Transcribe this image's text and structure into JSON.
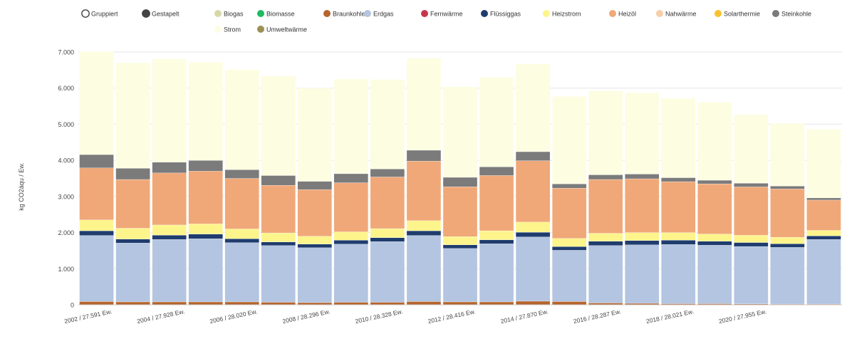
{
  "modes": [
    {
      "label": "Gruppiert",
      "selected": false
    },
    {
      "label": "Gestapelt",
      "selected": true
    }
  ],
  "chart_data": {
    "type": "bar",
    "stacked": true,
    "title": "",
    "xlabel": "",
    "ylabel": "kg CO2äqu / Ew.",
    "ylim": [
      0,
      7000
    ],
    "yticks": [
      0,
      1000,
      2000,
      3000,
      4000,
      5000,
      6000,
      7000
    ],
    "ytick_labels": [
      "0",
      "1.000",
      "2.000",
      "3.000",
      "4.000",
      "5.000",
      "6.000",
      "7.000"
    ],
    "grid": true,
    "legend_position": "top",
    "categories": [
      "2002 / 27.591 Ew.",
      "2003",
      "2004 / 27.928 Ew.",
      "2005",
      "2006 / 28.020 Ew.",
      "2007",
      "2008 / 28.296 Ew.",
      "2009",
      "2010 / 28.328 Ew.",
      "2011",
      "2012 / 28.416 Ew.",
      "2013",
      "2014 / 27.870 Ew.",
      "2015",
      "2016 / 28.287 Ew.",
      "2017",
      "2018 / 28.021 Ew.",
      "2019",
      "2020 / 27.955 Ew.",
      "2021",
      "2022"
    ],
    "tick_labels_shown": [
      "2002 / 27.591 Ew.",
      "2004 / 27.928 Ew.",
      "2006 / 28.020 Ew.",
      "2008 / 28.296 Ew.",
      "2010 / 28.328 Ew.",
      "2012 / 28.416 Ew.",
      "2014 / 27.870 Ew.",
      "2016 / 28.287 Ew.",
      "2018 / 28.021 Ew.",
      "2020 / 27.955 Ew."
    ],
    "series": [
      {
        "name": "Biogas",
        "color": "#d9d9a8",
        "values": [
          0,
          0,
          0,
          0,
          0,
          0,
          0,
          0,
          0,
          0,
          0,
          0,
          0,
          0,
          0,
          0,
          0,
          0,
          0,
          0,
          0
        ]
      },
      {
        "name": "Biomasse",
        "color": "#1fba62",
        "values": [
          0,
          0,
          0,
          0,
          0,
          0,
          0,
          0,
          0,
          0,
          0,
          0,
          0,
          0,
          0,
          0,
          0,
          0,
          0,
          0,
          0
        ]
      },
      {
        "name": "Braunkohle",
        "color": "#b5652d",
        "values": [
          90,
          80,
          80,
          80,
          80,
          70,
          60,
          70,
          70,
          90,
          80,
          80,
          100,
          90,
          50,
          40,
          30,
          30,
          25,
          20,
          20
        ]
      },
      {
        "name": "Erdgas",
        "color": "#b3c5e0",
        "values": [
          1830,
          1630,
          1730,
          1750,
          1640,
          1570,
          1520,
          1610,
          1680,
          1830,
          1480,
          1610,
          1780,
          1420,
          1590,
          1620,
          1640,
          1620,
          1590,
          1570,
          1790
        ]
      },
      {
        "name": "Fernwärme",
        "color": "#c4364b",
        "values": [
          0,
          0,
          0,
          0,
          0,
          0,
          0,
          0,
          0,
          0,
          0,
          0,
          0,
          0,
          0,
          0,
          0,
          0,
          0,
          0,
          0
        ]
      },
      {
        "name": "Flüssiggas",
        "color": "#1f3c6e",
        "values": [
          130,
          110,
          120,
          130,
          110,
          100,
          100,
          110,
          110,
          130,
          100,
          110,
          130,
          100,
          120,
          120,
          120,
          110,
          110,
          100,
          100
        ]
      },
      {
        "name": "Heizstrom",
        "color": "#fdf58c",
        "values": [
          300,
          300,
          280,
          280,
          270,
          250,
          220,
          230,
          250,
          280,
          230,
          250,
          280,
          230,
          220,
          220,
          210,
          200,
          200,
          180,
          150
        ]
      },
      {
        "name": "Heizöl",
        "color": "#f0a878",
        "values": [
          1440,
          1350,
          1440,
          1460,
          1400,
          1320,
          1290,
          1360,
          1430,
          1650,
          1380,
          1530,
          1700,
          1390,
          1490,
          1490,
          1410,
          1390,
          1340,
          1340,
          840
        ]
      },
      {
        "name": "Nahwärme",
        "color": "#f8cda8",
        "values": [
          0,
          0,
          0,
          0,
          0,
          0,
          0,
          0,
          0,
          0,
          0,
          0,
          0,
          0,
          0,
          0,
          0,
          0,
          0,
          0,
          0
        ]
      },
      {
        "name": "Solarthermie",
        "color": "#f7c22b",
        "values": [
          0,
          0,
          0,
          0,
          0,
          0,
          0,
          0,
          0,
          0,
          0,
          0,
          0,
          0,
          0,
          0,
          0,
          0,
          0,
          0,
          0
        ]
      },
      {
        "name": "Steinkohle",
        "color": "#7b7b7b",
        "values": [
          370,
          310,
          300,
          300,
          240,
          270,
          230,
          250,
          220,
          300,
          260,
          240,
          250,
          120,
          130,
          130,
          110,
          100,
          100,
          80,
          60
        ]
      },
      {
        "name": "Strom",
        "color": "#fdfde2",
        "values": [
          2850,
          2920,
          2860,
          2720,
          2770,
          2750,
          2580,
          2620,
          2480,
          2550,
          2510,
          2480,
          2430,
          2420,
          2320,
          2250,
          2200,
          2160,
          1900,
          1740,
          1900
        ]
      },
      {
        "name": "Umweltwärme",
        "color": "#9c8f52",
        "values": [
          0,
          0,
          0,
          0,
          0,
          0,
          0,
          0,
          0,
          0,
          0,
          0,
          0,
          0,
          0,
          0,
          0,
          0,
          0,
          0,
          0
        ]
      }
    ]
  }
}
